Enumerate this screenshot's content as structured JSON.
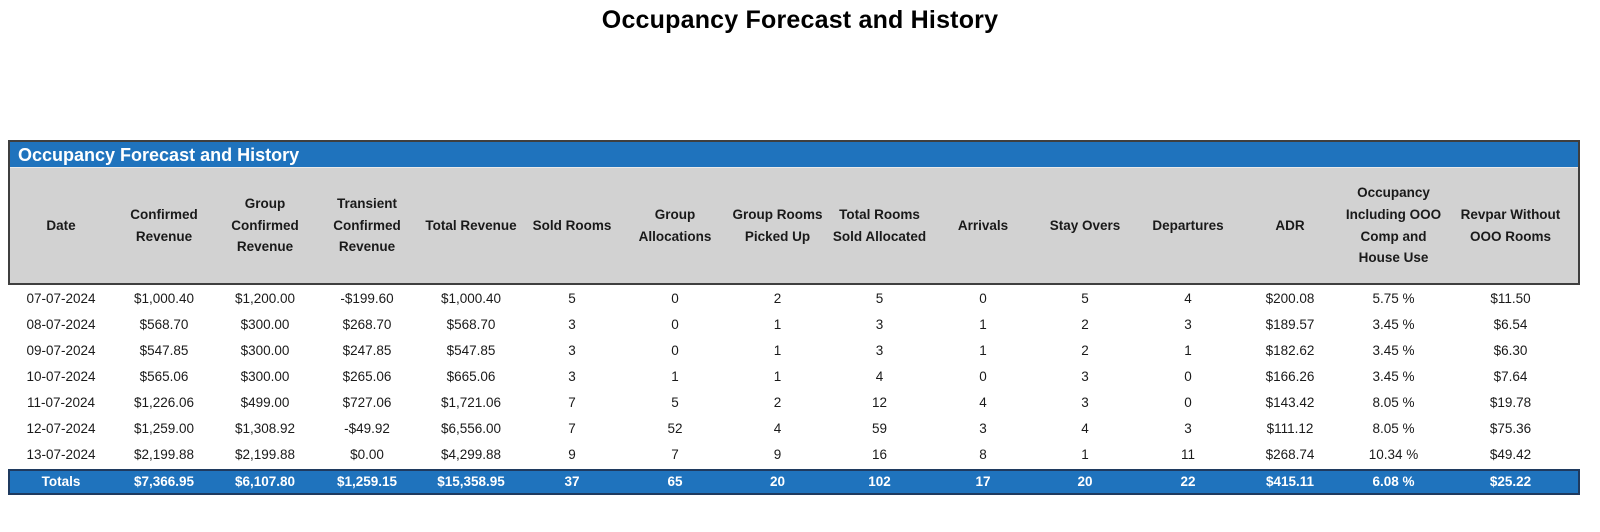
{
  "page": {
    "title": "Occupancy Forecast and History"
  },
  "table": {
    "title": "Occupancy Forecast and History",
    "colors": {
      "header_bar_blue": "#1F73BD",
      "header_row_gray": "#D2D2D2",
      "head_box_border": "#3f3f3f",
      "totals_border": "#1f3a5f",
      "totals_text": "#ffffff"
    },
    "columns": [
      "Date",
      "Confirmed Revenue",
      "Group Confirmed Revenue",
      "Transient Confirmed Revenue",
      "Total Revenue",
      "Sold Rooms",
      "Group Allocations",
      "Group Rooms Picked Up",
      "Total Rooms Sold Allocated",
      "Arrivals",
      "Stay Overs",
      "Departures",
      "ADR",
      "Occupancy Including OOO Comp and House Use",
      "Revpar Without OOO Rooms"
    ],
    "rows": [
      [
        "07-07-2024",
        "$1,000.40",
        "$1,200.00",
        "-$199.60",
        "$1,000.40",
        "5",
        "0",
        "2",
        "5",
        "0",
        "5",
        "4",
        "$200.08",
        "5.75 %",
        "$11.50"
      ],
      [
        "08-07-2024",
        "$568.70",
        "$300.00",
        "$268.70",
        "$568.70",
        "3",
        "0",
        "1",
        "3",
        "1",
        "2",
        "3",
        "$189.57",
        "3.45 %",
        "$6.54"
      ],
      [
        "09-07-2024",
        "$547.85",
        "$300.00",
        "$247.85",
        "$547.85",
        "3",
        "0",
        "1",
        "3",
        "1",
        "2",
        "1",
        "$182.62",
        "3.45 %",
        "$6.30"
      ],
      [
        "10-07-2024",
        "$565.06",
        "$300.00",
        "$265.06",
        "$665.06",
        "3",
        "1",
        "1",
        "4",
        "0",
        "3",
        "0",
        "$166.26",
        "3.45 %",
        "$7.64"
      ],
      [
        "11-07-2024",
        "$1,226.06",
        "$499.00",
        "$727.06",
        "$1,721.06",
        "7",
        "5",
        "2",
        "12",
        "4",
        "3",
        "0",
        "$143.42",
        "8.05 %",
        "$19.78"
      ],
      [
        "12-07-2024",
        "$1,259.00",
        "$1,308.92",
        "-$49.92",
        "$6,556.00",
        "7",
        "52",
        "4",
        "59",
        "3",
        "4",
        "3",
        "$111.12",
        "8.05 %",
        "$75.36"
      ],
      [
        "13-07-2024",
        "$2,199.88",
        "$2,199.88",
        "$0.00",
        "$4,299.88",
        "9",
        "7",
        "9",
        "16",
        "8",
        "1",
        "11",
        "$268.74",
        "10.34 %",
        "$49.42"
      ]
    ],
    "totals": [
      "Totals",
      "$7,366.95",
      "$6,107.80",
      "$1,259.15",
      "$15,358.95",
      "37",
      "65",
      "20",
      "102",
      "17",
      "20",
      "22",
      "$415.11",
      "6.08 %",
      "$25.22"
    ]
  }
}
